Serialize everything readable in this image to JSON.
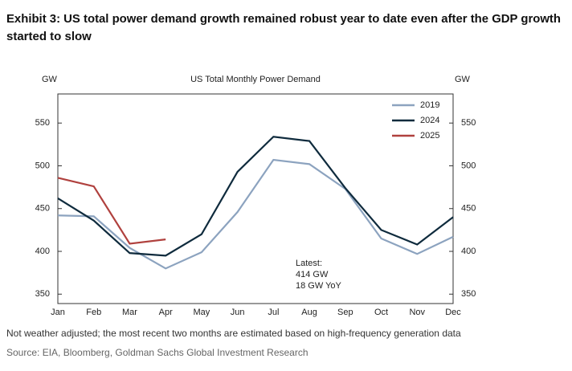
{
  "chart_data": {
    "type": "line",
    "title": [
      "Exhibit 3: US total power demand growth remained robust year to date even after the GDP growth",
      "started to slow"
    ],
    "subtitle": "US Total Monthly Power Demand",
    "y_label": "GW",
    "y2_label": "GW",
    "categories": [
      "Jan",
      "Feb",
      "Mar",
      "Apr",
      "May",
      "Jun",
      "Jul",
      "Aug",
      "Sep",
      "Oct",
      "Nov",
      "Dec"
    ],
    "series": [
      {
        "name": "2019",
        "color": "#8ca3bf",
        "values": [
          442,
          441,
          404,
          380,
          399,
          446,
          507,
          502,
          473,
          415,
          397,
          417
        ]
      },
      {
        "name": "2024",
        "color": "#0f2b3d",
        "values": [
          462,
          436,
          398,
          395,
          420,
          493,
          534,
          529,
          474,
          425,
          408,
          440
        ]
      },
      {
        "name": "2025",
        "color": "#b0413e",
        "values": [
          486,
          476,
          409,
          414,
          null,
          null,
          null,
          null,
          null,
          null,
          null,
          null
        ]
      }
    ],
    "ylim": [
      339,
      584
    ],
    "yticks": [
      350,
      400,
      450,
      500,
      550
    ],
    "y2lim": [
      339,
      584
    ],
    "y2ticks": [
      350,
      400,
      450,
      500,
      550
    ],
    "legend": "upper right",
    "annotation": [
      "Latest:",
      "414 GW",
      "18 GW YoY"
    ],
    "footnote": "Not weather adjusted; the most recent two months are estimated based on high-frequency generation data",
    "source": "Source: EIA, Bloomberg, Goldman Sachs Global Investment Research"
  }
}
